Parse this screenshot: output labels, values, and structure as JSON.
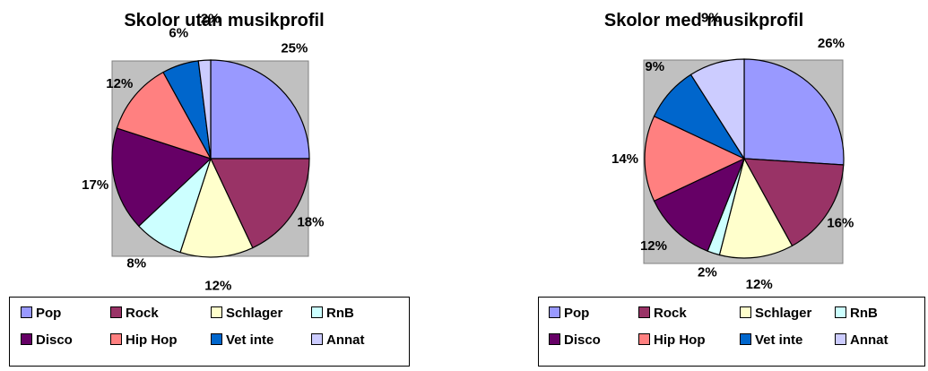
{
  "chart_data": [
    {
      "type": "pie",
      "title": "Skolor utan musikprofil",
      "categories": [
        "Pop",
        "Rock",
        "Schlager",
        "RnB",
        "Disco",
        "Hip Hop",
        "Vet inte",
        "Annat"
      ],
      "values": [
        25,
        18,
        12,
        8,
        17,
        12,
        6,
        2
      ],
      "labels": [
        "25%",
        "18%",
        "12%",
        "8%",
        "17%",
        "12%",
        "6%",
        "2%"
      ],
      "legend_position": "bottom"
    },
    {
      "type": "pie",
      "title": "Skolor med musikprofil",
      "categories": [
        "Pop",
        "Rock",
        "Schlager",
        "RnB",
        "Disco",
        "Hip Hop",
        "Vet inte",
        "Annat"
      ],
      "values": [
        26,
        16,
        12,
        2,
        12,
        14,
        9,
        9
      ],
      "labels": [
        "26%",
        "16%",
        "12%",
        "2%",
        "12%",
        "14%",
        "9%",
        "9%"
      ],
      "legend_position": "bottom"
    }
  ],
  "colors": [
    "#9999ff",
    "#993366",
    "#ffffcc",
    "#ccffff",
    "#660066",
    "#ff8080",
    "#0066cc",
    "#ccccff"
  ],
  "plot_background": "#c0c0c0"
}
